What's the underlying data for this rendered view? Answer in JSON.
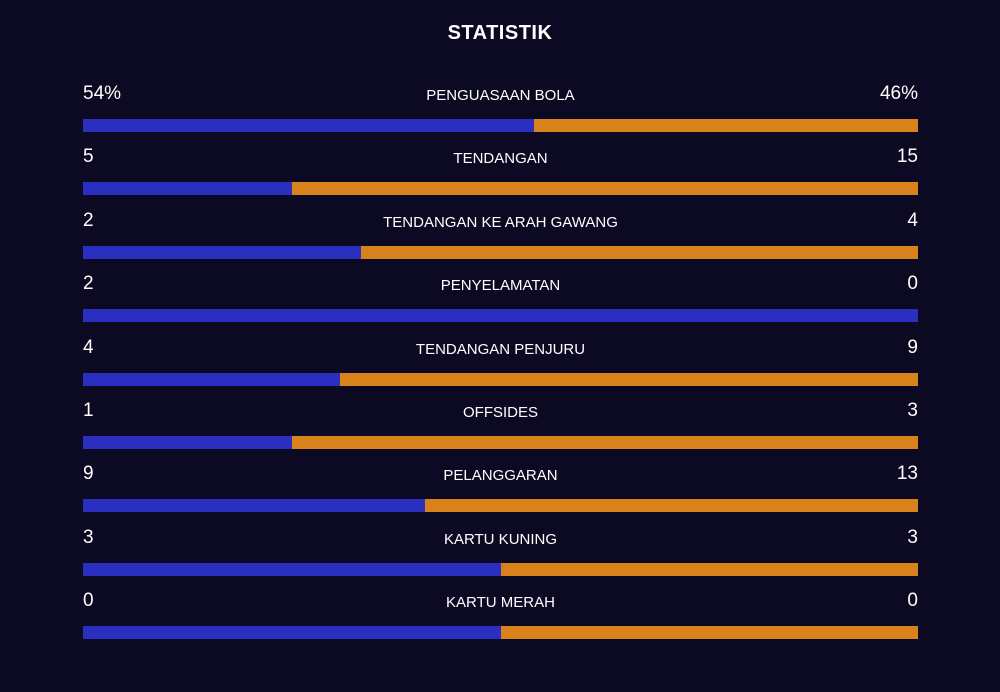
{
  "title": "STATISTIK",
  "colors": {
    "home": "#2b2fbf",
    "away": "#d9821c",
    "background": "#0b0a22"
  },
  "chart_data": {
    "type": "bar",
    "title": "STATISTIK",
    "rows": [
      {
        "label": "PENGUASAAN BOLA",
        "home": 54,
        "away": 46,
        "home_text": "54%",
        "away_text": "46%"
      },
      {
        "label": "TENDANGAN",
        "home": 5,
        "away": 15,
        "home_text": "5",
        "away_text": "15"
      },
      {
        "label": "TENDANGAN KE ARAH GAWANG",
        "home": 2,
        "away": 4,
        "home_text": "2",
        "away_text": "4"
      },
      {
        "label": "PENYELAMATAN",
        "home": 2,
        "away": 0,
        "home_text": "2",
        "away_text": "0"
      },
      {
        "label": "TENDANGAN PENJURU",
        "home": 4,
        "away": 9,
        "home_text": "4",
        "away_text": "9"
      },
      {
        "label": "OFFSIDES",
        "home": 1,
        "away": 3,
        "home_text": "1",
        "away_text": "3"
      },
      {
        "label": "PELANGGARAN",
        "home": 9,
        "away": 13,
        "home_text": "9",
        "away_text": "13"
      },
      {
        "label": "KARTU KUNING",
        "home": 3,
        "away": 3,
        "home_text": "3",
        "away_text": "3"
      },
      {
        "label": "KARTU MERAH",
        "home": 0,
        "away": 0,
        "home_text": "0",
        "away_text": "0"
      }
    ]
  }
}
